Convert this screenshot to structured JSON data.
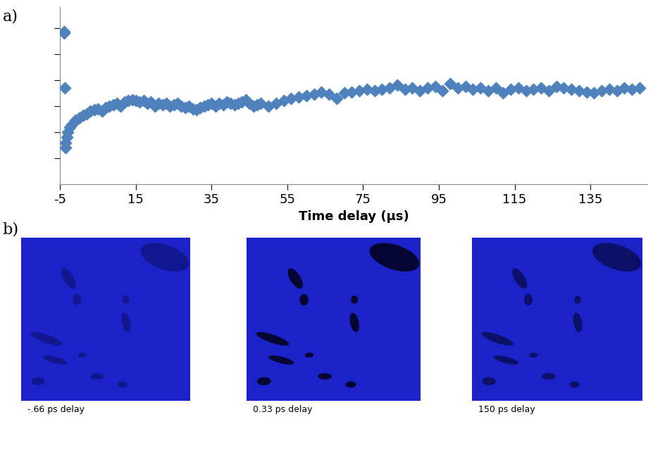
{
  "chart_data": {
    "type": "scatter",
    "x_label": "Time delay (µs)",
    "color": "#4f81bd",
    "marker": "diamond",
    "tick_labels": "x",
    "xlim": [
      -5,
      150
    ],
    "xticks": [
      -5,
      15,
      35,
      55,
      75,
      95,
      115,
      135
    ],
    "ylim": [
      0,
      6.8
    ],
    "yticks": [
      1,
      2,
      3,
      4,
      5,
      6
    ],
    "x": [
      -4,
      -4,
      -3.8,
      -3.6,
      -3.5,
      -3.3,
      -3,
      -2.5,
      -2,
      -1,
      0,
      1,
      2,
      3,
      4,
      5,
      6,
      7,
      8,
      9,
      10,
      11,
      12,
      13,
      14,
      15,
      16,
      17,
      18,
      19,
      20,
      21,
      22,
      23,
      24,
      25,
      26,
      27,
      28,
      29,
      30,
      31,
      32,
      33,
      34,
      35,
      36,
      37,
      38,
      39,
      40,
      41,
      42,
      43,
      44,
      45,
      46,
      47,
      48,
      50,
      52,
      54,
      56,
      58,
      60,
      62,
      64,
      66,
      68,
      70,
      72,
      74,
      76,
      78,
      80,
      82,
      84,
      86,
      88,
      90,
      92,
      94,
      96,
      98,
      100,
      102,
      104,
      106,
      108,
      110,
      112,
      114,
      116,
      118,
      120,
      122,
      124,
      126,
      128,
      130,
      132,
      134,
      136,
      138,
      140,
      142,
      144,
      146,
      148
    ],
    "values": [
      5.85,
      5.8,
      3.7,
      1.4,
      1.6,
      1.8,
      2.0,
      2.2,
      2.3,
      2.45,
      2.55,
      2.65,
      2.7,
      2.8,
      2.85,
      2.9,
      2.8,
      2.95,
      3.0,
      3.05,
      3.1,
      3.0,
      3.15,
      3.2,
      3.25,
      3.2,
      3.15,
      3.2,
      3.1,
      3.15,
      3.0,
      3.1,
      3.05,
      3.1,
      3.0,
      3.05,
      3.1,
      3.0,
      2.95,
      3.0,
      2.9,
      2.85,
      2.95,
      3.0,
      3.05,
      3.1,
      3.0,
      3.1,
      3.05,
      3.15,
      3.1,
      3.05,
      3.1,
      3.15,
      3.25,
      3.1,
      3.0,
      3.05,
      3.1,
      3.0,
      3.1,
      3.2,
      3.3,
      3.35,
      3.4,
      3.45,
      3.55,
      3.45,
      3.3,
      3.5,
      3.55,
      3.6,
      3.65,
      3.6,
      3.65,
      3.7,
      3.8,
      3.65,
      3.7,
      3.6,
      3.7,
      3.75,
      3.6,
      3.85,
      3.7,
      3.75,
      3.65,
      3.7,
      3.6,
      3.7,
      3.5,
      3.65,
      3.7,
      3.6,
      3.65,
      3.7,
      3.6,
      3.75,
      3.7,
      3.65,
      3.6,
      3.55,
      3.5,
      3.6,
      3.65,
      3.6,
      3.7,
      3.65,
      3.7
    ]
  },
  "panel_labels": [
    "a)",
    "b)"
  ],
  "images": [
    {
      "caption": "-.66 ps delay"
    },
    {
      "caption": "0.33 ps delay"
    },
    {
      "caption": "150 ps delay"
    }
  ]
}
